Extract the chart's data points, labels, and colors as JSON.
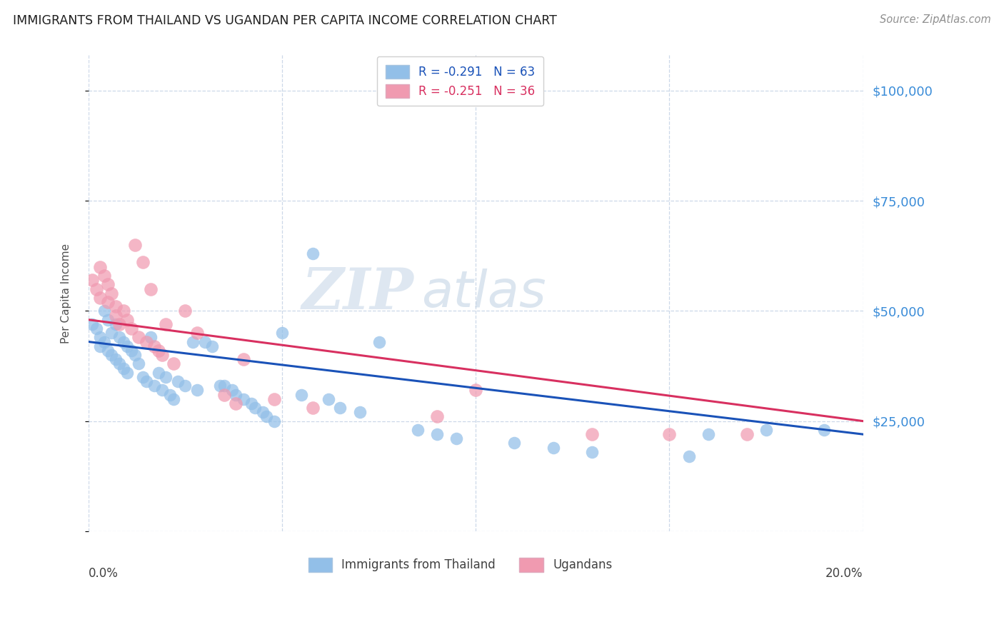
{
  "title": "IMMIGRANTS FROM THAILAND VS UGANDAN PER CAPITA INCOME CORRELATION CHART",
  "source": "Source: ZipAtlas.com",
  "ylabel": "Per Capita Income",
  "yticks": [
    0,
    25000,
    50000,
    75000,
    100000
  ],
  "ytick_labels": [
    "",
    "$25,000",
    "$50,000",
    "$75,000",
    "$100,000"
  ],
  "ylim": [
    0,
    108000
  ],
  "xlim": [
    0.0,
    0.2
  ],
  "blue_label": "Immigrants from Thailand",
  "pink_label": "Ugandans",
  "blue_r": -0.291,
  "blue_n": 63,
  "pink_r": -0.251,
  "pink_n": 36,
  "blue_scatter_color": "#92bfe8",
  "pink_scatter_color": "#f09ab0",
  "blue_line_color": "#1a52b8",
  "pink_line_color": "#d83060",
  "ytick_color": "#3a8cd8",
  "watermark_zip": "ZIP",
  "watermark_atlas": "atlas",
  "grid_color": "#ccd8e8",
  "title_color": "#202020",
  "source_color": "#909090",
  "blue_x": [
    0.001,
    0.002,
    0.003,
    0.003,
    0.004,
    0.004,
    0.005,
    0.005,
    0.006,
    0.006,
    0.007,
    0.007,
    0.008,
    0.008,
    0.009,
    0.009,
    0.01,
    0.01,
    0.011,
    0.012,
    0.013,
    0.014,
    0.015,
    0.016,
    0.017,
    0.018,
    0.019,
    0.02,
    0.021,
    0.022,
    0.023,
    0.025,
    0.027,
    0.028,
    0.03,
    0.032,
    0.034,
    0.035,
    0.037,
    0.038,
    0.04,
    0.042,
    0.043,
    0.045,
    0.046,
    0.048,
    0.05,
    0.055,
    0.058,
    0.062,
    0.065,
    0.07,
    0.075,
    0.085,
    0.09,
    0.095,
    0.11,
    0.12,
    0.13,
    0.155,
    0.16,
    0.175,
    0.19
  ],
  "blue_y": [
    47000,
    46000,
    44000,
    42000,
    50000,
    43000,
    48000,
    41000,
    45000,
    40000,
    47000,
    39000,
    44000,
    38000,
    43000,
    37000,
    42000,
    36000,
    41000,
    40000,
    38000,
    35000,
    34000,
    44000,
    33000,
    36000,
    32000,
    35000,
    31000,
    30000,
    34000,
    33000,
    43000,
    32000,
    43000,
    42000,
    33000,
    33000,
    32000,
    31000,
    30000,
    29000,
    28000,
    27000,
    26000,
    25000,
    45000,
    31000,
    63000,
    30000,
    28000,
    27000,
    43000,
    23000,
    22000,
    21000,
    20000,
    19000,
    18000,
    17000,
    22000,
    23000,
    23000
  ],
  "pink_x": [
    0.001,
    0.002,
    0.003,
    0.003,
    0.004,
    0.005,
    0.005,
    0.006,
    0.007,
    0.007,
    0.008,
    0.009,
    0.01,
    0.011,
    0.012,
    0.013,
    0.014,
    0.015,
    0.016,
    0.017,
    0.018,
    0.019,
    0.02,
    0.022,
    0.025,
    0.028,
    0.035,
    0.038,
    0.04,
    0.048,
    0.058,
    0.09,
    0.1,
    0.13,
    0.15,
    0.17
  ],
  "pink_y": [
    57000,
    55000,
    60000,
    53000,
    58000,
    56000,
    52000,
    54000,
    51000,
    49000,
    47000,
    50000,
    48000,
    46000,
    65000,
    44000,
    61000,
    43000,
    55000,
    42000,
    41000,
    40000,
    47000,
    38000,
    50000,
    45000,
    31000,
    29000,
    39000,
    30000,
    28000,
    26000,
    32000,
    22000,
    22000,
    22000
  ],
  "blue_line_x0": 0.0,
  "blue_line_y0": 43000,
  "blue_line_x1": 0.2,
  "blue_line_y1": 22000,
  "pink_line_x0": 0.0,
  "pink_line_y0": 48000,
  "pink_line_x1": 0.2,
  "pink_line_y1": 25000
}
